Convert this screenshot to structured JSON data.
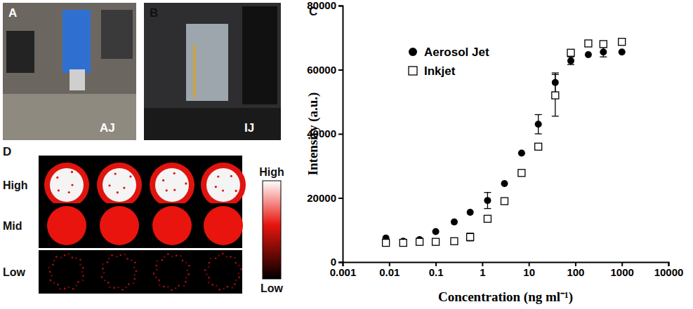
{
  "photos": [
    {
      "label": "A",
      "tag": "AJ"
    },
    {
      "label": "B",
      "tag": "IJ"
    }
  ],
  "spot_array": {
    "label": "D",
    "rows": [
      "High",
      "Mid",
      "Low"
    ],
    "colorbar_labels": [
      "High",
      "Low"
    ]
  },
  "chart_data": {
    "type": "scatter",
    "annotations": [
      "C"
    ],
    "x_label": "Concentration (ng ml⁻¹)",
    "y_label": "Intensity (a.u.)",
    "x": [
      0.0085,
      0.02,
      0.045,
      0.1,
      0.25,
      0.55,
      1.3,
      3,
      7,
      16,
      37,
      80,
      190,
      400,
      1000
    ],
    "series": [
      {
        "name": "Aerosol Jet",
        "color": "#000000",
        "marker": "circle",
        "values": [
          7500,
          6500,
          7000,
          9500,
          12500,
          15500,
          19200,
          24500,
          34000,
          43000,
          56000,
          62800,
          64700,
          65500,
          65500
        ],
        "errors": [
          null,
          null,
          null,
          null,
          null,
          null,
          2500,
          null,
          null,
          3000,
          3000,
          1200,
          null,
          1500,
          null
        ]
      },
      {
        "name": "Inkjet",
        "color": "#000000",
        "marker": "square-open",
        "values": [
          6000,
          6000,
          6300,
          6300,
          6500,
          7800,
          13500,
          19000,
          27800,
          36000,
          52000,
          65300,
          68200,
          68000,
          68700
        ],
        "errors": [
          null,
          null,
          null,
          null,
          null,
          1200,
          null,
          null,
          null,
          null,
          6500,
          null,
          null,
          null,
          null
        ]
      }
    ],
    "xlim": [
      0.001,
      10000
    ],
    "ylim": [
      0,
      80000
    ],
    "xticks": [
      0.001,
      0.01,
      0.1,
      1,
      10,
      100,
      1000,
      10000
    ],
    "yticks": [
      0,
      20000,
      40000,
      60000,
      80000
    ],
    "log": "x",
    "legend": "top-left",
    "grid": false
  }
}
